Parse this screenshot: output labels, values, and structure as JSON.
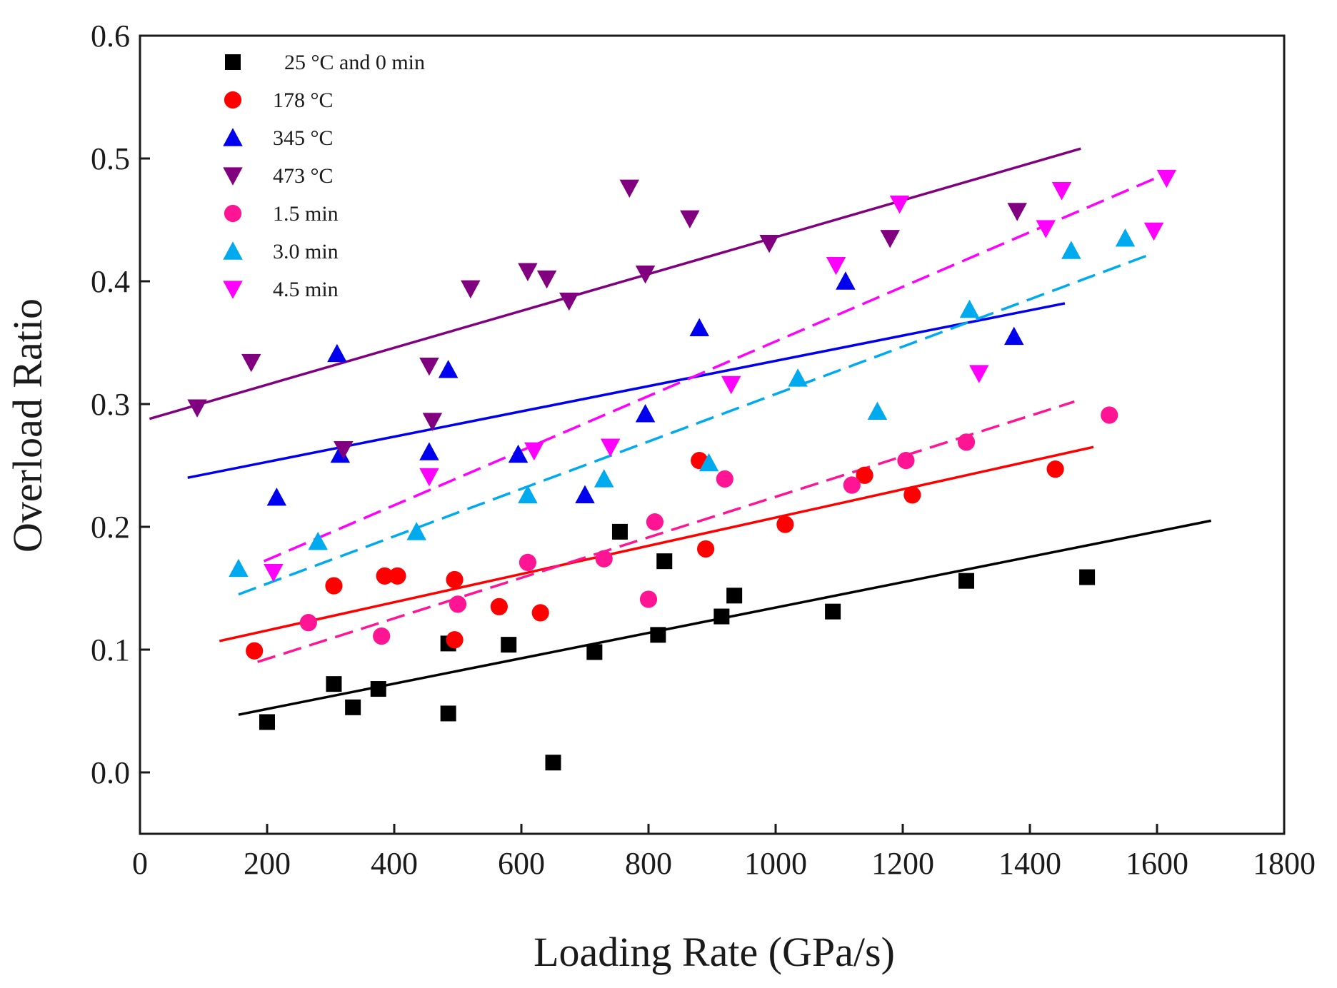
{
  "chart_data": {
    "type": "scatter",
    "title": "",
    "xlabel": "Loading Rate (GPa/s)",
    "ylabel": "Overload Ratio",
    "xlim": [
      0,
      1800
    ],
    "ylim": [
      -0.05,
      0.6
    ],
    "x_ticks": [
      "0",
      "200",
      "400",
      "600",
      "800",
      "1000",
      "1200",
      "1400",
      "1600",
      "1800"
    ],
    "y_ticks": [
      "0.0",
      "0.1",
      "0.2",
      "0.3",
      "0.4",
      "0.5",
      "0.6"
    ],
    "legend_position": "top-left",
    "series": [
      {
        "name": "25 °C and 0 min",
        "marker": "square",
        "color": "#000000",
        "line_style": "solid",
        "fit": [
          [
            155,
            0.047
          ],
          [
            1685,
            0.205
          ]
        ],
        "points": [
          [
            200,
            0.041
          ],
          [
            305,
            0.072
          ],
          [
            335,
            0.053
          ],
          [
            375,
            0.068
          ],
          [
            485,
            0.105
          ],
          [
            485,
            0.048
          ],
          [
            580,
            0.104
          ],
          [
            650,
            0.008
          ],
          [
            715,
            0.098
          ],
          [
            755,
            0.196
          ],
          [
            815,
            0.112
          ],
          [
            825,
            0.172
          ],
          [
            915,
            0.127
          ],
          [
            935,
            0.144
          ],
          [
            1090,
            0.131
          ],
          [
            1300,
            0.156
          ],
          [
            1490,
            0.159
          ]
        ]
      },
      {
        "name": "178 °C",
        "marker": "circle",
        "color": "#ff0000",
        "line_style": "solid",
        "fit": [
          [
            125,
            0.107
          ],
          [
            1500,
            0.265
          ]
        ],
        "points": [
          [
            180,
            0.099
          ],
          [
            305,
            0.152
          ],
          [
            385,
            0.16
          ],
          [
            405,
            0.16
          ],
          [
            495,
            0.157
          ],
          [
            495,
            0.108
          ],
          [
            565,
            0.135
          ],
          [
            630,
            0.13
          ],
          [
            880,
            0.254
          ],
          [
            890,
            0.182
          ],
          [
            1015,
            0.202
          ],
          [
            1140,
            0.242
          ],
          [
            1215,
            0.226
          ],
          [
            1440,
            0.247
          ]
        ]
      },
      {
        "name": "345 °C",
        "marker": "triangle-up",
        "color": "#0000ee",
        "line_style": "solid",
        "fit": [
          [
            75,
            0.24
          ],
          [
            1455,
            0.382
          ]
        ],
        "points": [
          [
            215,
            0.224
          ],
          [
            310,
            0.341
          ],
          [
            315,
            0.259
          ],
          [
            455,
            0.261
          ],
          [
            485,
            0.328
          ],
          [
            595,
            0.259
          ],
          [
            700,
            0.226
          ],
          [
            795,
            0.292
          ],
          [
            880,
            0.362
          ],
          [
            1110,
            0.4
          ],
          [
            1375,
            0.355
          ]
        ]
      },
      {
        "name": "473 °C",
        "marker": "triangle-down",
        "color": "#800080",
        "line_style": "solid",
        "fit": [
          [
            15,
            0.288
          ],
          [
            1480,
            0.508
          ]
        ],
        "points": [
          [
            90,
            0.297
          ],
          [
            175,
            0.334
          ],
          [
            320,
            0.263
          ],
          [
            455,
            0.331
          ],
          [
            460,
            0.286
          ],
          [
            520,
            0.394
          ],
          [
            610,
            0.408
          ],
          [
            640,
            0.402
          ],
          [
            675,
            0.384
          ],
          [
            770,
            0.476
          ],
          [
            795,
            0.406
          ],
          [
            865,
            0.451
          ],
          [
            990,
            0.431
          ],
          [
            1180,
            0.435
          ],
          [
            1380,
            0.457
          ]
        ]
      },
      {
        "name": "1.5 min",
        "marker": "circle",
        "color": "#ff1493",
        "line_style": "dashed",
        "fit": [
          [
            185,
            0.09
          ],
          [
            1470,
            0.302
          ]
        ],
        "points": [
          [
            265,
            0.122
          ],
          [
            380,
            0.111
          ],
          [
            500,
            0.137
          ],
          [
            610,
            0.171
          ],
          [
            730,
            0.174
          ],
          [
            800,
            0.141
          ],
          [
            810,
            0.204
          ],
          [
            920,
            0.239
          ],
          [
            1120,
            0.234
          ],
          [
            1205,
            0.254
          ],
          [
            1300,
            0.269
          ],
          [
            1525,
            0.291
          ]
        ]
      },
      {
        "name": "3.0 min",
        "marker": "triangle-up",
        "color": "#00aaee",
        "line_style": "dashed",
        "fit": [
          [
            155,
            0.145
          ],
          [
            1590,
            0.422
          ]
        ],
        "points": [
          [
            155,
            0.166
          ],
          [
            280,
            0.188
          ],
          [
            435,
            0.196
          ],
          [
            610,
            0.226
          ],
          [
            730,
            0.239
          ],
          [
            895,
            0.252
          ],
          [
            1035,
            0.321
          ],
          [
            1160,
            0.294
          ],
          [
            1305,
            0.377
          ],
          [
            1465,
            0.425
          ],
          [
            1550,
            0.435
          ]
        ]
      },
      {
        "name": "4.5 min",
        "marker": "triangle-down",
        "color": "#ff00ff",
        "line_style": "dashed",
        "fit": [
          [
            195,
            0.172
          ],
          [
            1625,
            0.49
          ]
        ],
        "points": [
          [
            210,
            0.163
          ],
          [
            455,
            0.241
          ],
          [
            620,
            0.262
          ],
          [
            740,
            0.265
          ],
          [
            930,
            0.316
          ],
          [
            1095,
            0.413
          ],
          [
            1195,
            0.463
          ],
          [
            1320,
            0.325
          ],
          [
            1425,
            0.443
          ],
          [
            1450,
            0.474
          ],
          [
            1595,
            0.441
          ],
          [
            1615,
            0.484
          ]
        ]
      }
    ]
  }
}
